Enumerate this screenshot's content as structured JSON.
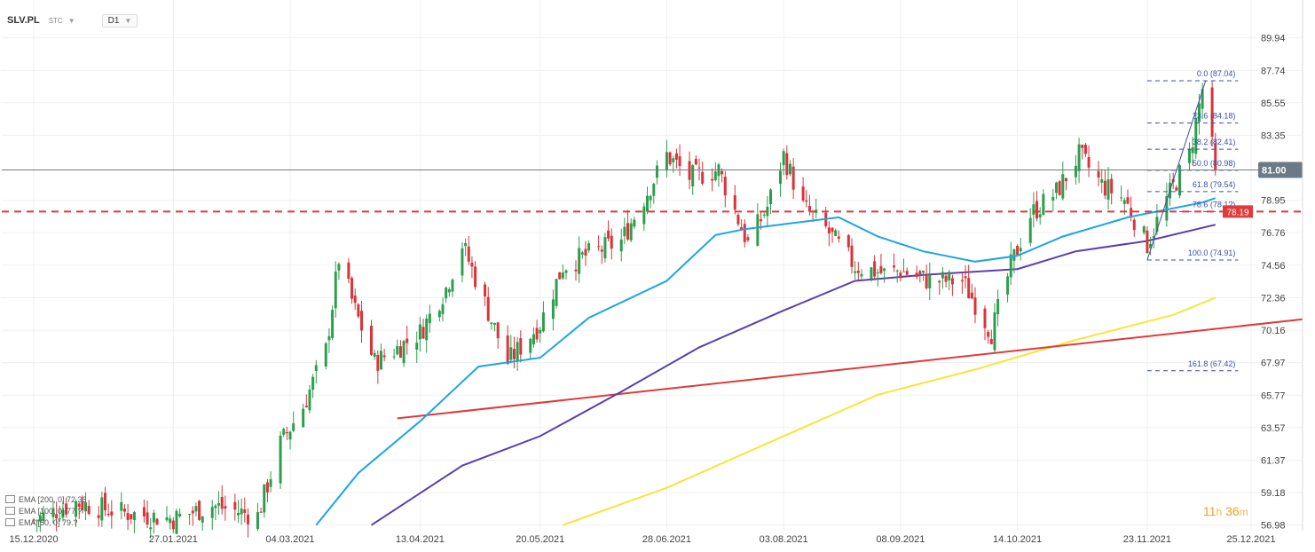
{
  "header": {
    "symbol": "SLV.PL",
    "subtitle": "STC",
    "timeframe": "D1"
  },
  "legend": [
    {
      "label": "EMA [200, 0] 72.36"
    },
    {
      "label": "EMA [100, 0] 77.?"
    },
    {
      "label": "EMA [50, 0] 79.?"
    }
  ],
  "timer": {
    "hours": "11",
    "h": "h",
    "minutes": "36",
    "m": "m"
  },
  "colors": {
    "up": "#2e9e4e",
    "down": "#d9343a",
    "ema200": "#f5e63a",
    "ema100": "#5b3fb0",
    "ema50": "#1ea4e6",
    "trend": "#e03a3a",
    "resistance": "#e03a3a",
    "fib": "#3b4fa8",
    "current_price_bg": "#6d7a86",
    "grid": "#f0f0f0"
  },
  "chart_data": {
    "type": "candlestick",
    "x_tick_labels": [
      "15.12.2020",
      "27.01.2021",
      "04.03.2021",
      "13.04.2021",
      "20.05.2021",
      "28.06.2021",
      "03.08.2021",
      "08.09.2021",
      "14.10.2021",
      "23.11.2021",
      "25.12.2021"
    ],
    "y_tick_labels": [
      "89.94",
      "87.74",
      "85.55",
      "83.35",
      "81.00",
      "78.95",
      "76.76",
      "74.56",
      "72.36",
      "70.16",
      "67.97",
      "65.77",
      "63.57",
      "61.37",
      "59.18",
      "56.98"
    ],
    "ylim": [
      56.6,
      92.5
    ],
    "current_price": {
      "value": 81.0,
      "label": "81.00"
    },
    "resistance_level": {
      "value": 78.19,
      "label": "78.19"
    },
    "fibonacci": [
      {
        "level": "0.0",
        "price": 87.04,
        "label": "0.0 (87.04)"
      },
      {
        "level": "23.6",
        "price": 84.18,
        "label": "23.6 (84.18)"
      },
      {
        "level": "38.2",
        "price": 82.41,
        "label": "38.2 (82.41)"
      },
      {
        "level": "50.0",
        "price": 80.98,
        "label": "50.0 (80.98)"
      },
      {
        "level": "61.8",
        "price": 79.54,
        "label": "61.8 (79.54)"
      },
      {
        "level": "78.6",
        "price": 78.19,
        "label": "78.6 (78.1?)"
      },
      {
        "level": "100.0",
        "price": 74.91,
        "label": "100.0 (74.91)"
      },
      {
        "level": "161.8",
        "price": 67.42,
        "label": "161.8 (67.42)"
      }
    ],
    "trendline": [
      {
        "date": "2021-04-06",
        "value": 64.2
      },
      {
        "date": "2021-12-25",
        "value": 70.9
      }
    ],
    "series_keypoints": {
      "close": [
        [
          "2020-12-15",
          57.3
        ],
        [
          "2020-12-28",
          58.5
        ],
        [
          "2021-01-12",
          57.8
        ],
        [
          "2021-01-27",
          57.4
        ],
        [
          "2021-02-08",
          58.3
        ],
        [
          "2021-02-22",
          57.6
        ],
        [
          "2021-03-01",
          62.5
        ],
        [
          "2021-03-08",
          65.0
        ],
        [
          "2021-03-15",
          68.8
        ],
        [
          "2021-03-19",
          75.0
        ],
        [
          "2021-03-24",
          71.5
        ],
        [
          "2021-03-30",
          68.0
        ],
        [
          "2021-04-05",
          68.8
        ],
        [
          "2021-04-13",
          70.0
        ],
        [
          "2021-04-21",
          73.0
        ],
        [
          "2021-04-26",
          76.0
        ],
        [
          "2021-05-03",
          72.0
        ],
        [
          "2021-05-10",
          68.0
        ],
        [
          "2021-05-20",
          70.6
        ],
        [
          "2021-05-27",
          74.5
        ],
        [
          "2021-06-03",
          75.2
        ],
        [
          "2021-06-14",
          76.2
        ],
        [
          "2021-06-28",
          82.0
        ],
        [
          "2021-07-05",
          80.5
        ],
        [
          "2021-07-14",
          81.0
        ],
        [
          "2021-07-23",
          76.0
        ],
        [
          "2021-07-29",
          78.5
        ],
        [
          "2021-08-03",
          82.0
        ],
        [
          "2021-08-09",
          78.5
        ],
        [
          "2021-08-16",
          77.0
        ],
        [
          "2021-08-25",
          74.5
        ],
        [
          "2021-09-03",
          74.0
        ],
        [
          "2021-09-08",
          74.2
        ],
        [
          "2021-09-17",
          73.5
        ],
        [
          "2021-09-27",
          73.5
        ],
        [
          "2021-10-01",
          72.0
        ],
        [
          "2021-10-06",
          70.0
        ],
        [
          "2021-10-12",
          74.5
        ],
        [
          "2021-10-18",
          78.0
        ],
        [
          "2021-10-26",
          79.5
        ],
        [
          "2021-11-02",
          82.0
        ],
        [
          "2021-11-09",
          80.0
        ],
        [
          "2021-11-16",
          79.0
        ],
        [
          "2021-11-23",
          76.0
        ],
        [
          "2021-11-29",
          79.0
        ],
        [
          "2021-12-06",
          82.0
        ],
        [
          "2021-12-10",
          86.5
        ],
        [
          "2021-12-13",
          82.5
        ],
        [
          "2021-12-14",
          81.0
        ]
      ],
      "ema50": [
        [
          "2021-03-12",
          56.98
        ],
        [
          "2021-03-25",
          60.5
        ],
        [
          "2021-04-13",
          64.0
        ],
        [
          "2021-05-01",
          67.7
        ],
        [
          "2021-05-20",
          68.3
        ],
        [
          "2021-06-04",
          71.0
        ],
        [
          "2021-06-28",
          73.5
        ],
        [
          "2021-07-13",
          76.6
        ],
        [
          "2021-07-22",
          77.0
        ],
        [
          "2021-08-09",
          77.5
        ],
        [
          "2021-08-20",
          77.8
        ],
        [
          "2021-09-01",
          76.5
        ],
        [
          "2021-09-15",
          75.5
        ],
        [
          "2021-10-01",
          74.8
        ],
        [
          "2021-10-14",
          75.2
        ],
        [
          "2021-10-28",
          76.5
        ],
        [
          "2021-11-17",
          77.8
        ],
        [
          "2021-12-10",
          78.8
        ],
        [
          "2021-12-14",
          79.1
        ]
      ],
      "ema100": [
        [
          "2021-03-29",
          56.98
        ],
        [
          "2021-04-26",
          61.0
        ],
        [
          "2021-05-20",
          63.0
        ],
        [
          "2021-06-14",
          66.0
        ],
        [
          "2021-07-08",
          69.0
        ],
        [
          "2021-08-03",
          71.5
        ],
        [
          "2021-08-25",
          73.5
        ],
        [
          "2021-09-15",
          73.9
        ],
        [
          "2021-10-14",
          74.3
        ],
        [
          "2021-11-01",
          75.5
        ],
        [
          "2021-11-23",
          76.2
        ],
        [
          "2021-12-14",
          77.3
        ]
      ],
      "ema200": [
        [
          "2021-05-27",
          56.98
        ],
        [
          "2021-06-28",
          59.5
        ],
        [
          "2021-08-03",
          63.0
        ],
        [
          "2021-09-01",
          65.8
        ],
        [
          "2021-10-01",
          67.5
        ],
        [
          "2021-11-01",
          69.5
        ],
        [
          "2021-12-01",
          71.2
        ],
        [
          "2021-12-14",
          72.36
        ]
      ]
    }
  }
}
